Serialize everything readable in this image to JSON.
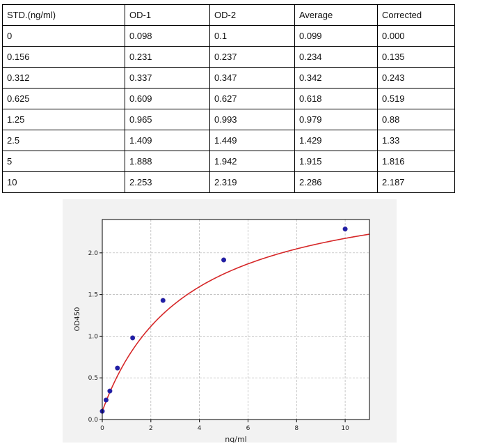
{
  "table": {
    "headers": [
      "STD.(ng/ml)",
      "OD-1",
      "OD-2",
      "Average",
      "Corrected"
    ],
    "rows": [
      [
        "0",
        "0.098",
        "0.1",
        "0.099",
        "0.000"
      ],
      [
        "0.156",
        "0.231",
        "0.237",
        "0.234",
        "0.135"
      ],
      [
        "0.312",
        "0.337",
        "0.347",
        "0.342",
        "0.243"
      ],
      [
        "0.625",
        "0.609",
        "0.627",
        "0.618",
        "0.519"
      ],
      [
        "1.25",
        "0.965",
        "0.993",
        "0.979",
        "0.88"
      ],
      [
        "2.5",
        "1.409",
        "1.449",
        "1.429",
        "1.33"
      ],
      [
        "5",
        "1.888",
        "1.942",
        "1.915",
        "1.816"
      ],
      [
        "10",
        "2.253",
        "2.319",
        "2.286",
        "2.187"
      ]
    ]
  },
  "chart_data": {
    "type": "scatter",
    "xlabel": "ng/ml",
    "ylabel": "OD450",
    "xlim": [
      0,
      11
    ],
    "ylim": [
      0,
      2.4
    ],
    "xticks": [
      0,
      2,
      4,
      6,
      8,
      10
    ],
    "yticks": [
      0.0,
      0.5,
      1.0,
      1.5,
      2.0
    ],
    "xtick_labels": [
      "0",
      "2",
      "4",
      "6",
      "8",
      "10"
    ],
    "ytick_labels": [
      "0.0",
      "0.5",
      "1.0",
      "1.5",
      "2.0"
    ],
    "grid": true,
    "points": {
      "x": [
        0,
        0.156,
        0.312,
        0.625,
        1.25,
        2.5,
        5,
        10
      ],
      "y": [
        0.099,
        0.234,
        0.342,
        0.618,
        0.979,
        1.429,
        1.915,
        2.286
      ]
    },
    "fit_curve": {
      "type": "4PL",
      "A": 0.099,
      "D": 2.9,
      "C": 3.5,
      "B": 1.0
    },
    "colors": {
      "point": "#1f1fa8",
      "curve": "#d62728",
      "grid": "#b0b0b0",
      "panel_bg": "#f2f2f2"
    }
  }
}
